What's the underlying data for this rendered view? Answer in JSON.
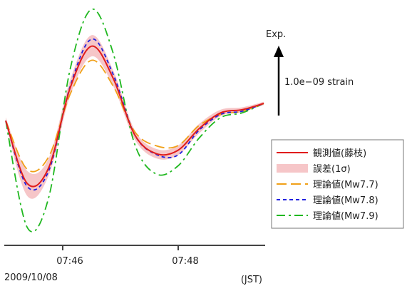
{
  "chart_data": {
    "type": "line",
    "x_unit": "JST time",
    "x_ticks": [
      "07:46",
      "07:48"
    ],
    "date": "2009/10/08",
    "timezone": "(JST)",
    "scale_bar": {
      "label": "1.0e−09 strain",
      "title": "Exp."
    },
    "legend_position": "right",
    "x": [
      0,
      4,
      8,
      12,
      16,
      20,
      24,
      28,
      32,
      36,
      40,
      44,
      48
    ],
    "series": [
      {
        "name": "観測値(藤枝)",
        "style": "solid",
        "color": "#e01c1c",
        "values": [
          -0.02,
          -0.82,
          -0.62,
          0.4,
          0.93,
          0.52,
          -0.2,
          -0.44,
          -0.4,
          -0.12,
          0.08,
          0.12,
          0.2
        ]
      },
      {
        "name": "理論値(Mw7.7)",
        "style": "long-dash",
        "color": "#f0a018",
        "values": [
          -0.02,
          -0.64,
          -0.48,
          0.32,
          0.75,
          0.42,
          -0.16,
          -0.34,
          -0.34,
          -0.08,
          0.06,
          0.1,
          0.2
        ]
      },
      {
        "name": "理論値(Mw7.8)",
        "style": "short-dash",
        "color": "#2020e0",
        "values": [
          -0.02,
          -0.86,
          -0.66,
          0.42,
          1.02,
          0.57,
          -0.2,
          -0.45,
          -0.46,
          -0.14,
          0.06,
          0.1,
          0.2
        ]
      },
      {
        "name": "理論値(Mw7.9)",
        "style": "dash-dot",
        "color": "#20b820",
        "values": [
          -0.02,
          -1.38,
          -1.0,
          0.64,
          1.4,
          0.84,
          -0.32,
          -0.7,
          -0.6,
          -0.24,
          0.02,
          0.08,
          0.2
        ]
      }
    ],
    "error_band": {
      "name": "誤差(1σ)",
      "color": "#f6c6c8",
      "lower": [
        -0.06,
        -0.98,
        -0.72,
        0.3,
        0.8,
        0.42,
        -0.26,
        -0.5,
        -0.46,
        -0.18,
        0.04,
        0.09,
        0.18
      ],
      "upper": [
        0.02,
        -0.66,
        -0.5,
        0.5,
        1.07,
        0.62,
        -0.14,
        -0.38,
        -0.34,
        -0.06,
        0.12,
        0.15,
        0.22
      ]
    }
  }
}
